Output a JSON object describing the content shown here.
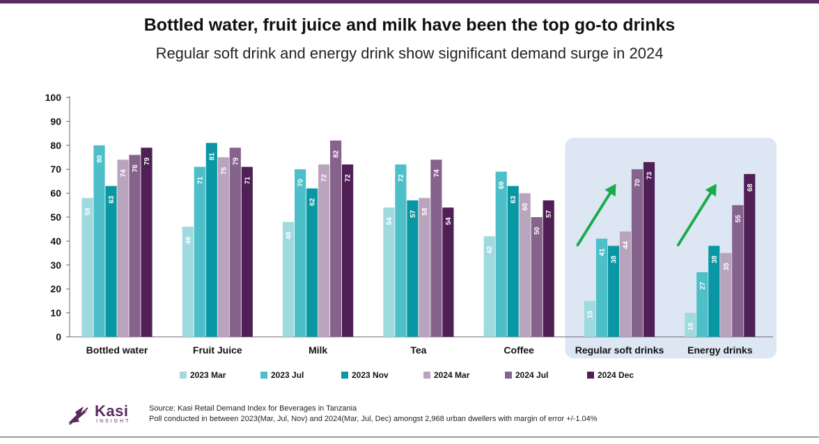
{
  "title": "Bottled water, fruit juice and milk have been the top go-to drinks",
  "subtitle": "Regular soft drink and energy drink show significant demand surge in 2024",
  "chart_data": {
    "type": "bar",
    "categories": [
      "Bottled water",
      "Fruit Juice",
      "Milk",
      "Tea",
      "Coffee",
      "Regular soft drinks",
      "Energy drinks"
    ],
    "series": [
      {
        "name": "2023 Mar",
        "color": "#9fdadf",
        "values": [
          58,
          46,
          48,
          54,
          42,
          15,
          10
        ]
      },
      {
        "name": "2023 Jul",
        "color": "#4dbfc9",
        "values": [
          80,
          71,
          70,
          72,
          69,
          41,
          27
        ]
      },
      {
        "name": "2023 Nov",
        "color": "#0a97a4",
        "values": [
          63,
          81,
          62,
          57,
          63,
          38,
          38
        ]
      },
      {
        "name": "2024 Mar",
        "color": "#b9a4bd",
        "values": [
          74,
          75,
          72,
          58,
          60,
          44,
          35
        ]
      },
      {
        "name": "2024 Jul",
        "color": "#86638c",
        "values": [
          76,
          79,
          82,
          74,
          50,
          70,
          55
        ]
      },
      {
        "name": "2024 Dec",
        "color": "#4f1f55",
        "values": [
          79,
          71,
          72,
          54,
          57,
          73,
          68
        ]
      }
    ],
    "yticks": [
      "0",
      "10",
      "20",
      "30",
      "40",
      "50",
      "60",
      "70",
      "80",
      "90",
      "100"
    ],
    "ylim": [
      0,
      100
    ],
    "grid": false,
    "legend_position": "bottom",
    "highlight_categories": [
      "Regular soft drinks",
      "Energy drinks"
    ],
    "highlight_color": "#dde6f3",
    "arrow_color": "#1aab4b"
  },
  "footer": {
    "logo_name": "Kasi",
    "logo_sub": "INSIGHT",
    "source_line1": "Source: Kasi Retail Demand Index for Beverages in Tanzania",
    "source_line2": "Poll conducted  in between 2023(Mar, Jul, Nov) and 2024(Mar, Jul, Dec) amongst 2,968  urban dwellers with margin of error +/-1.04%"
  }
}
